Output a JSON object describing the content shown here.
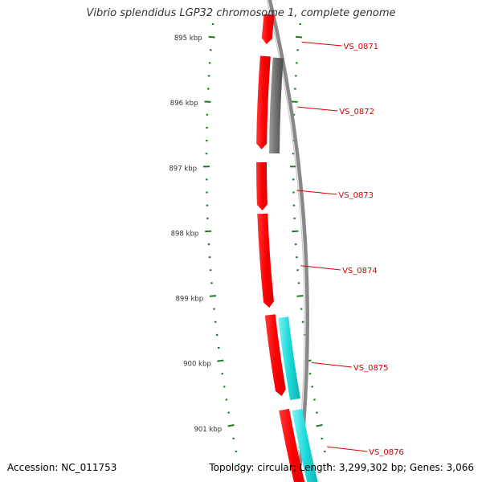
{
  "title": "Vibrio splendidus LGP32 chromosome 1, complete genome",
  "accession_label": "Accession:",
  "accession": "NC_011753",
  "topology_label": "Topology:",
  "topology": "circular",
  "length_label": "Length:",
  "length": "3,299,302 bp",
  "genes_label": "Genes:",
  "genes": "3,066",
  "colors": {
    "forward_gene": "#ff0000",
    "cyan_gene": "#19d6d6",
    "gray_gene": "#6f6f6f",
    "backbone": "#888888",
    "tick": "#1f7a1f",
    "label": "#d40000",
    "kbp_text": "#333333"
  },
  "chart_data": {
    "type": "circular genome map (partial view)",
    "kbp_ticks": [
      "895 kbp",
      "896 kbp",
      "897 kbp",
      "898 kbp",
      "899 kbp",
      "900 kbp",
      "901 kbp"
    ],
    "kbp_values": [
      895,
      896,
      897,
      898,
      899,
      900,
      901
    ],
    "genes": [
      {
        "label": "VS_0871",
        "track": "forward",
        "color": "red"
      },
      {
        "label": "VS_0872",
        "track": "forward",
        "color": "red"
      },
      {
        "label": "VS_0872",
        "track": "second",
        "color": "gray"
      },
      {
        "label": "VS_0873",
        "track": "forward",
        "color": "red"
      },
      {
        "label": "VS_0874",
        "track": "forward",
        "color": "red"
      },
      {
        "label": "VS_0875",
        "track": "forward",
        "color": "red"
      },
      {
        "label": "VS_0875",
        "track": "second",
        "color": "cyan"
      },
      {
        "label": "VS_0876",
        "track": "forward",
        "color": "red"
      },
      {
        "label": "VS_0876",
        "track": "second",
        "color": "cyan"
      }
    ],
    "gene_labels": [
      "VS_0871",
      "VS_0872",
      "VS_0873",
      "VS_0874",
      "VS_0875",
      "VS_0876"
    ]
  }
}
